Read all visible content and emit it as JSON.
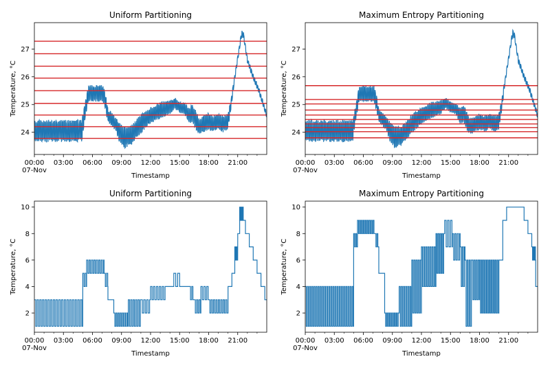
{
  "chart_data": [
    {
      "type": "line",
      "title": "Uniform Partitioning",
      "xlabel": "Timestamp",
      "ylabel": "Temperature, °C",
      "x_tick_labels": [
        "00:00",
        "03:00",
        "06:00",
        "09:00",
        "12:00",
        "15:00",
        "18:00",
        "21:00"
      ],
      "x_date_label": "07-Nov",
      "xlim": [
        "2021-11-07T00:00",
        "2021-11-07T24:00"
      ],
      "y_ticks": [
        24,
        25,
        26,
        27
      ],
      "ylim": [
        23.2,
        27.95
      ],
      "grid": false,
      "line_color": "#1f77b4",
      "partition_color": "#d62728",
      "partition_lines": [
        23.78,
        24.2,
        24.62,
        25.04,
        25.5,
        25.95,
        26.38,
        26.83,
        27.28
      ],
      "series": [
        {
          "x_hours": [
            0,
            4.9,
            5.3,
            5.6,
            7.1,
            7.4,
            7.6,
            8.4,
            8.8,
            9.2,
            10,
            11,
            12,
            13,
            14,
            14.5,
            15,
            15.5,
            16,
            16.3,
            16.6,
            17,
            17.5,
            18,
            18.5,
            19,
            19.5,
            20,
            20.3,
            20.7,
            21.2,
            21.4,
            21.6,
            22,
            22.6,
            23.2,
            24
          ],
          "y": [
            24.05,
            24.05,
            24.9,
            25.4,
            25.4,
            25.0,
            24.6,
            24.3,
            24.0,
            23.8,
            23.9,
            24.3,
            24.6,
            24.8,
            24.9,
            25.05,
            24.9,
            24.85,
            24.6,
            24.7,
            24.5,
            24.2,
            24.3,
            24.4,
            24.3,
            24.4,
            24.3,
            24.4,
            25.0,
            26.0,
            27.1,
            27.55,
            27.5,
            26.6,
            26.0,
            25.5,
            24.6
          ],
          "noise": [
            0.4,
            0.4,
            0.3,
            0.3,
            0.3,
            0.3,
            0.25,
            0.25,
            0.4,
            0.4,
            0.35,
            0.35,
            0.3,
            0.3,
            0.25,
            0.2,
            0.2,
            0.2,
            0.3,
            0.35,
            0.35,
            0.3,
            0.3,
            0.3,
            0.3,
            0.3,
            0.3,
            0.3,
            0.2,
            0.1,
            0.1,
            0.15,
            0.1,
            0.1,
            0.1,
            0.1,
            0.1
          ]
        }
      ]
    },
    {
      "type": "line",
      "title": "Maximum Entropy Partitioning",
      "xlabel": "Timestamp",
      "ylabel": "Temperature, °C",
      "x_tick_labels": [
        "00:00",
        "03:00",
        "06:00",
        "09:00",
        "12:00",
        "15:00",
        "18:00",
        "21:00"
      ],
      "x_date_label": "07-Nov",
      "xlim": [
        "2021-11-07T00:00",
        "2021-11-07T24:00"
      ],
      "y_ticks": [
        24,
        25,
        26,
        27
      ],
      "ylim": [
        23.2,
        27.95
      ],
      "grid": false,
      "line_color": "#1f77b4",
      "partition_color": "#d62728",
      "partition_lines": [
        23.8,
        24.02,
        24.17,
        24.3,
        24.46,
        24.62,
        24.8,
        25.02,
        25.18,
        25.68
      ],
      "series": [
        {
          "x_hours": [
            0,
            4.9,
            5.3,
            5.6,
            7.1,
            7.4,
            7.6,
            8.4,
            8.8,
            9.2,
            10,
            11,
            12,
            13,
            14,
            14.5,
            15,
            15.5,
            16,
            16.3,
            16.6,
            17,
            17.5,
            18,
            18.5,
            19,
            19.5,
            20,
            20.3,
            20.7,
            21.2,
            21.4,
            21.6,
            22,
            22.6,
            23.2,
            24
          ],
          "y": [
            24.05,
            24.05,
            24.9,
            25.4,
            25.4,
            25.0,
            24.6,
            24.3,
            24.0,
            23.8,
            23.9,
            24.3,
            24.6,
            24.8,
            24.9,
            25.05,
            24.9,
            24.85,
            24.6,
            24.7,
            24.5,
            24.2,
            24.3,
            24.4,
            24.3,
            24.4,
            24.3,
            24.4,
            25.0,
            26.0,
            27.1,
            27.55,
            27.5,
            26.6,
            26.0,
            25.5,
            24.6
          ],
          "noise": [
            0.4,
            0.4,
            0.3,
            0.3,
            0.3,
            0.3,
            0.25,
            0.25,
            0.4,
            0.4,
            0.35,
            0.35,
            0.3,
            0.3,
            0.25,
            0.2,
            0.2,
            0.2,
            0.3,
            0.35,
            0.35,
            0.3,
            0.3,
            0.3,
            0.3,
            0.3,
            0.3,
            0.3,
            0.2,
            0.1,
            0.1,
            0.15,
            0.1,
            0.1,
            0.1,
            0.1,
            0.1
          ]
        }
      ]
    },
    {
      "type": "line",
      "step": true,
      "title": "Uniform Partitioning",
      "xlabel": "Timestamp",
      "ylabel": "Temperature, °C",
      "x_tick_labels": [
        "00:00",
        "03:00",
        "06:00",
        "09:00",
        "12:00",
        "15:00",
        "18:00",
        "21:00"
      ],
      "x_date_label": "07-Nov",
      "xlim": [
        "2021-11-07T00:00",
        "2021-11-07T24:00"
      ],
      "y_ticks": [
        2,
        4,
        6,
        8,
        10
      ],
      "ylim": [
        0.55,
        10.45
      ],
      "grid": false,
      "line_color": "#1f77b4",
      "series": [
        {
          "segments": [
            {
              "from": 0.0,
              "to": 5.0,
              "levels": [
                1,
                3
              ],
              "period": 0.28
            },
            {
              "from": 5.0,
              "to": 5.4,
              "levels": [
                4,
                5
              ],
              "period": 0.25
            },
            {
              "from": 5.4,
              "to": 7.2,
              "levels": [
                5,
                6
              ],
              "period": 0.25
            },
            {
              "from": 7.2,
              "to": 7.6,
              "levels": [
                4,
                5
              ],
              "period": 0.25
            },
            {
              "from": 7.6,
              "to": 8.2,
              "levels": [
                3,
                3
              ],
              "period": 1
            },
            {
              "from": 8.2,
              "to": 9.7,
              "levels": [
                1,
                2
              ],
              "period": 0.22
            },
            {
              "from": 9.7,
              "to": 11.0,
              "levels": [
                1,
                3
              ],
              "period": 0.25
            },
            {
              "from": 11.0,
              "to": 12.0,
              "levels": [
                2,
                3
              ],
              "period": 0.3
            },
            {
              "from": 12.0,
              "to": 13.5,
              "levels": [
                3,
                4
              ],
              "period": 0.3
            },
            {
              "from": 13.5,
              "to": 14.4,
              "levels": [
                4,
                4
              ],
              "period": 1
            },
            {
              "from": 14.4,
              "to": 15.2,
              "levels": [
                4,
                5
              ],
              "period": 0.4
            },
            {
              "from": 15.2,
              "to": 16.0,
              "levels": [
                4,
                4
              ],
              "period": 1
            },
            {
              "from": 16.0,
              "to": 16.5,
              "levels": [
                3,
                4
              ],
              "period": 0.25
            },
            {
              "from": 16.5,
              "to": 17.2,
              "levels": [
                2,
                3
              ],
              "period": 0.25
            },
            {
              "from": 17.2,
              "to": 18.0,
              "levels": [
                3,
                4
              ],
              "period": 0.3
            },
            {
              "from": 18.0,
              "to": 20.0,
              "levels": [
                2,
                3
              ],
              "period": 0.25
            },
            {
              "from": 20.0,
              "to": 20.4,
              "levels": [
                4,
                4
              ],
              "period": 1
            },
            {
              "from": 20.4,
              "to": 20.7,
              "levels": [
                5,
                5
              ],
              "period": 1
            },
            {
              "from": 20.7,
              "to": 21.0,
              "levels": [
                6,
                7
              ],
              "period": 0.15
            },
            {
              "from": 21.0,
              "to": 21.2,
              "levels": [
                8,
                8
              ],
              "period": 1
            },
            {
              "from": 21.2,
              "to": 21.6,
              "levels": [
                9,
                10
              ],
              "period": 0.15
            },
            {
              "from": 21.6,
              "to": 21.8,
              "levels": [
                9,
                9
              ],
              "period": 1
            },
            {
              "from": 21.8,
              "to": 22.2,
              "levels": [
                8,
                8
              ],
              "period": 1
            },
            {
              "from": 22.2,
              "to": 22.6,
              "levels": [
                7,
                7
              ],
              "period": 1
            },
            {
              "from": 22.6,
              "to": 23.0,
              "levels": [
                6,
                6
              ],
              "period": 1
            },
            {
              "from": 23.0,
              "to": 23.4,
              "levels": [
                5,
                5
              ],
              "period": 1
            },
            {
              "from": 23.4,
              "to": 23.8,
              "levels": [
                4,
                4
              ],
              "period": 1
            },
            {
              "from": 23.8,
              "to": 24.0,
              "levels": [
                3,
                3
              ],
              "period": 1
            }
          ]
        }
      ]
    },
    {
      "type": "line",
      "step": true,
      "title": "Maximum Entropy Partitioning",
      "xlabel": "Timestamp",
      "ylabel": "Temperature, °C",
      "x_tick_labels": [
        "00:00",
        "03:00",
        "06:00",
        "09:00",
        "12:00",
        "15:00",
        "18:00",
        "21:00"
      ],
      "x_date_label": "07-Nov",
      "xlim": [
        "2021-11-07T00:00",
        "2021-11-07T24:00"
      ],
      "y_ticks": [
        2,
        4,
        6,
        8,
        10
      ],
      "ylim": [
        0.55,
        10.45
      ],
      "grid": false,
      "line_color": "#1f77b4",
      "series": [
        {
          "segments": [
            {
              "from": 0.0,
              "to": 5.0,
              "levels": [
                1,
                4
              ],
              "period": 0.22
            },
            {
              "from": 5.0,
              "to": 5.4,
              "levels": [
                7,
                8
              ],
              "period": 0.2
            },
            {
              "from": 5.4,
              "to": 7.2,
              "levels": [
                8,
                9
              ],
              "period": 0.2
            },
            {
              "from": 7.2,
              "to": 7.6,
              "levels": [
                7,
                8
              ],
              "period": 0.2
            },
            {
              "from": 7.6,
              "to": 8.2,
              "levels": [
                5,
                5
              ],
              "period": 1
            },
            {
              "from": 8.2,
              "to": 9.7,
              "levels": [
                1,
                2
              ],
              "period": 0.2
            },
            {
              "from": 9.7,
              "to": 11.0,
              "levels": [
                1,
                4
              ],
              "period": 0.22
            },
            {
              "from": 11.0,
              "to": 12.0,
              "levels": [
                2,
                6
              ],
              "period": 0.22
            },
            {
              "from": 12.0,
              "to": 13.5,
              "levels": [
                4,
                7
              ],
              "period": 0.22
            },
            {
              "from": 13.5,
              "to": 14.4,
              "levels": [
                5,
                8
              ],
              "period": 0.2
            },
            {
              "from": 14.4,
              "to": 15.2,
              "levels": [
                7,
                9
              ],
              "period": 0.3
            },
            {
              "from": 15.2,
              "to": 16.0,
              "levels": [
                6,
                8
              ],
              "period": 0.25
            },
            {
              "from": 16.0,
              "to": 16.5,
              "levels": [
                4,
                7
              ],
              "period": 0.22
            },
            {
              "from": 16.5,
              "to": 17.2,
              "levels": [
                1,
                6
              ],
              "period": 0.22
            },
            {
              "from": 17.2,
              "to": 18.0,
              "levels": [
                3,
                6
              ],
              "period": 0.22
            },
            {
              "from": 18.0,
              "to": 20.0,
              "levels": [
                2,
                6
              ],
              "period": 0.2
            },
            {
              "from": 20.0,
              "to": 20.4,
              "levels": [
                6,
                6
              ],
              "period": 1
            },
            {
              "from": 20.4,
              "to": 20.8,
              "levels": [
                9,
                9
              ],
              "period": 1
            },
            {
              "from": 20.8,
              "to": 22.0,
              "levels": [
                10,
                10
              ],
              "period": 1
            },
            {
              "from": 22.0,
              "to": 22.6,
              "levels": [
                10,
                10
              ],
              "period": 1
            },
            {
              "from": 22.6,
              "to": 23.0,
              "levels": [
                9,
                9
              ],
              "period": 1
            },
            {
              "from": 23.0,
              "to": 23.4,
              "levels": [
                8,
                8
              ],
              "period": 1
            },
            {
              "from": 23.4,
              "to": 23.8,
              "levels": [
                6,
                7
              ],
              "period": 0.15
            },
            {
              "from": 23.8,
              "to": 24.0,
              "levels": [
                4,
                4
              ],
              "period": 1
            }
          ]
        }
      ]
    }
  ]
}
